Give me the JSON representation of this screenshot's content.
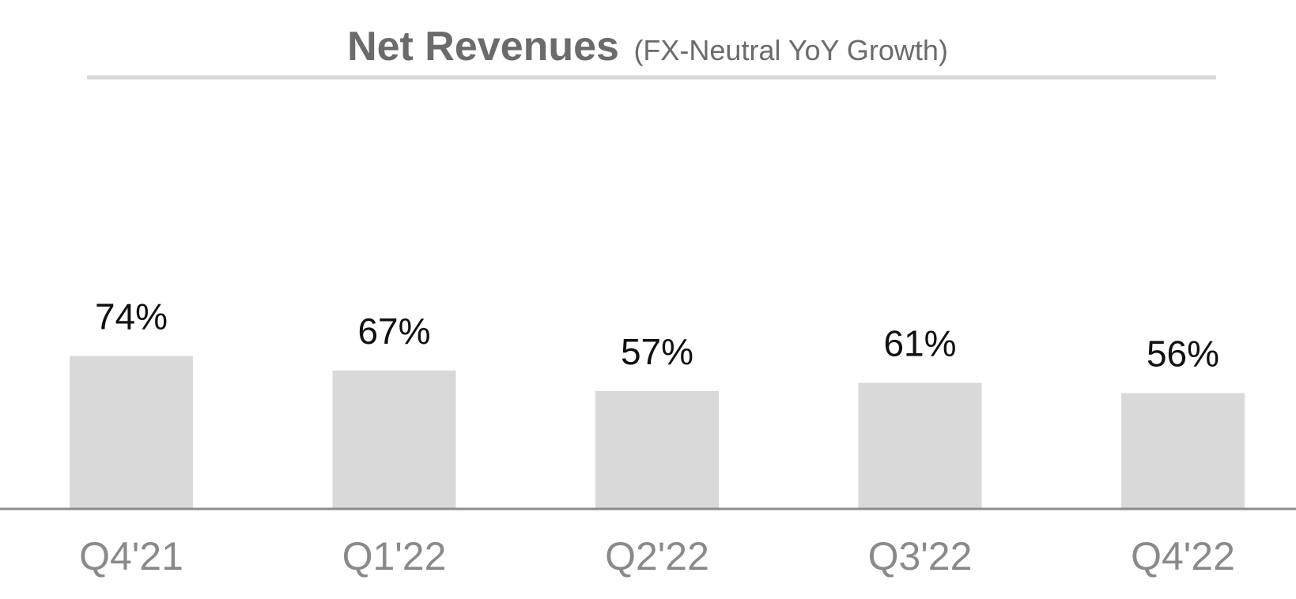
{
  "chart_data": {
    "type": "bar",
    "title": "Net Revenues",
    "subtitle": "(FX-Neutral YoY Growth)",
    "categories": [
      "Q4'21",
      "Q1'22",
      "Q2'22",
      "Q3'22",
      "Q4'22"
    ],
    "values": [
      74,
      67,
      57,
      61,
      56
    ],
    "data_labels": [
      "74%",
      "67%",
      "57%",
      "61%",
      "56%"
    ],
    "xlabel": "",
    "ylabel": "",
    "ylim": [
      0,
      100
    ],
    "grid": false,
    "legend": "none",
    "colors": {
      "bar": "#d9d9d9",
      "title": "#6b6b6b",
      "title_rule": "#d9d9d9",
      "baseline": "#8c8c8c",
      "value_label": "#111111",
      "category_label": "#8a8a8a"
    }
  }
}
